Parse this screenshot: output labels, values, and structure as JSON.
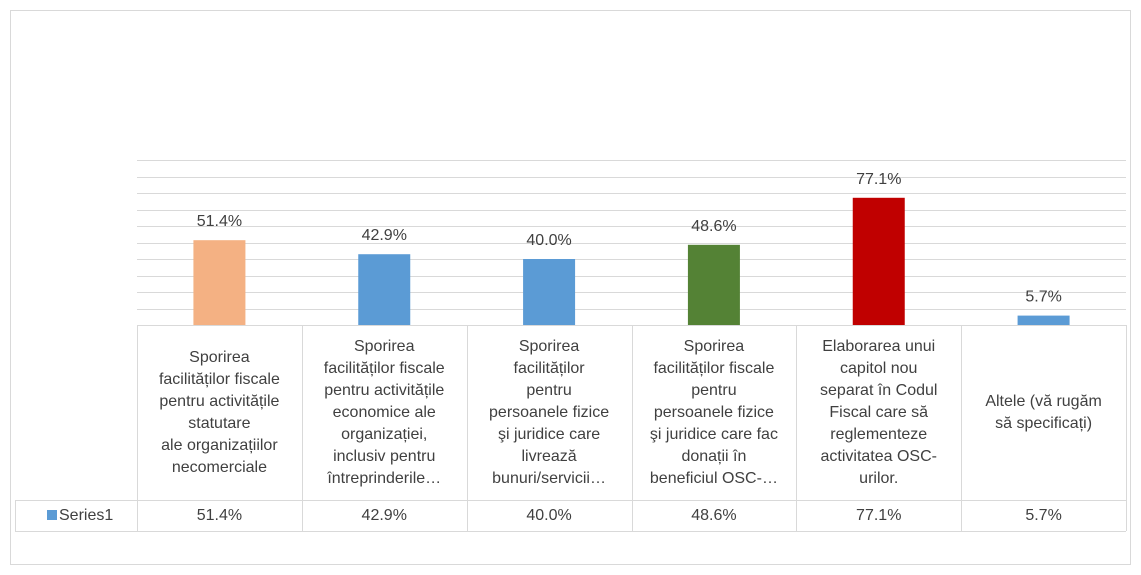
{
  "chart_data": {
    "type": "bar",
    "categories": [
      "Sporirea\nfacilităților fiscale\npentru activitățile\nstatutare\nale organizațiilor\nnecomerciale",
      "Sporirea\nfacilităților fiscale\npentru activitățile\neconomice ale\norganizației,\ninclusiv pentru\nîntreprinderile…",
      "Sporirea\nfacilităților\npentru\npersoanele fizice\nşi juridice care\nlivrează\nbunuri/servicii…",
      "Sporirea\nfacilităților fiscale\npentru\npersoanele fizice\nşi juridice care fac\ndonații în\nbeneficiul OSC-…",
      "Elaborarea unui\ncapitol nou\nseparat în Codul\nFiscal care să\nreglementeze\nactivitatea OSC-\nurilor.",
      "Altele (vă rugăm\nsă specificați)"
    ],
    "series": [
      {
        "name": "Series1",
        "color": "#5b9bd5",
        "colors": [
          "#f4b183",
          "#5b9bd5",
          "#5b9bd5",
          "#548235",
          "#c00000",
          "#5b9bd5"
        ],
        "values": [
          51.4,
          42.9,
          40.0,
          48.6,
          77.1,
          5.7
        ],
        "value_labels": [
          "51.4%",
          "42.9%",
          "40.0%",
          "48.6%",
          "77.1%",
          "5.7%"
        ]
      }
    ],
    "ylim": [
      0,
      100
    ],
    "yticks": [
      0,
      10,
      20,
      30,
      40,
      50,
      60,
      70,
      80,
      90,
      100
    ],
    "grid": true
  }
}
